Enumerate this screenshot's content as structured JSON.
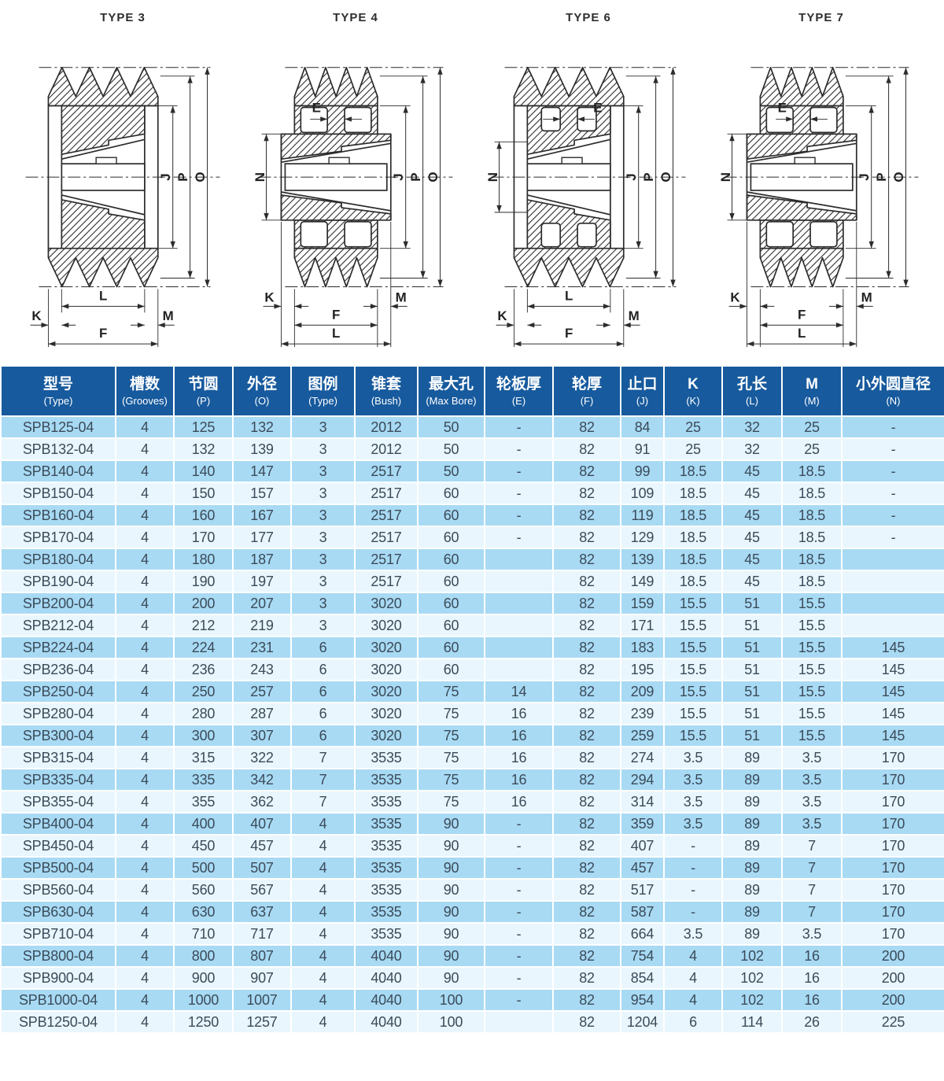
{
  "colors": {
    "header_bg": "#175a9d",
    "row_dark": "#a8daf4",
    "row_light": "#e9f6fd",
    "header_text": "#ffffff",
    "body_text": "#3b4b59",
    "line": "#2c2c2c"
  },
  "drawings": [
    {
      "title": "TYPE 3",
      "dim_labels": {
        "j": "J",
        "p": "P",
        "o": "O",
        "l": "L",
        "k": "K",
        "m": "M",
        "f": "F"
      }
    },
    {
      "title": "TYPE 4",
      "dim_labels": {
        "e": "E",
        "n": "N",
        "j": "J",
        "p": "P",
        "o": "O",
        "k": "K",
        "m": "M",
        "f": "F",
        "l": "L"
      }
    },
    {
      "title": "TYPE 6",
      "dim_labels": {
        "e": "E",
        "n": "N",
        "j": "J",
        "p": "P",
        "o": "O",
        "l": "L",
        "k": "K",
        "m": "M",
        "f": "F"
      }
    },
    {
      "title": "TYPE 7",
      "dim_labels": {
        "e": "E",
        "n": "N",
        "j": "J",
        "p": "P",
        "o": "O",
        "k": "K",
        "m": "M",
        "f": "F",
        "l": "L"
      }
    }
  ],
  "table": {
    "columns": [
      {
        "zh": "型号",
        "en": "(Type)"
      },
      {
        "zh": "槽数",
        "en": "(Grooves)"
      },
      {
        "zh": "节圆",
        "en": "(P)"
      },
      {
        "zh": "外径",
        "en": "(O)"
      },
      {
        "zh": "图例",
        "en": "(Type)"
      },
      {
        "zh": "锥套",
        "en": "(Bush)"
      },
      {
        "zh": "最大孔",
        "en": "(Max Bore)"
      },
      {
        "zh": "轮板厚",
        "en": "(E)"
      },
      {
        "zh": "轮厚",
        "en": "(F)"
      },
      {
        "zh": "止口",
        "en": "(J)"
      },
      {
        "zh": "K",
        "en": "(K)"
      },
      {
        "zh": "孔长",
        "en": "(L)"
      },
      {
        "zh": "M",
        "en": "(M)"
      },
      {
        "zh": "小外圆直径",
        "en": "(N)"
      }
    ],
    "rows": [
      [
        "SPB125-04",
        "4",
        "125",
        "132",
        "3",
        "2012",
        "50",
        "-",
        "82",
        "84",
        "25",
        "32",
        "25",
        "-"
      ],
      [
        "SPB132-04",
        "4",
        "132",
        "139",
        "3",
        "2012",
        "50",
        "-",
        "82",
        "91",
        "25",
        "32",
        "25",
        "-"
      ],
      [
        "SPB140-04",
        "4",
        "140",
        "147",
        "3",
        "2517",
        "50",
        "-",
        "82",
        "99",
        "18.5",
        "45",
        "18.5",
        "-"
      ],
      [
        "SPB150-04",
        "4",
        "150",
        "157",
        "3",
        "2517",
        "60",
        "-",
        "82",
        "109",
        "18.5",
        "45",
        "18.5",
        "-"
      ],
      [
        "SPB160-04",
        "4",
        "160",
        "167",
        "3",
        "2517",
        "60",
        "-",
        "82",
        "119",
        "18.5",
        "45",
        "18.5",
        "-"
      ],
      [
        "SPB170-04",
        "4",
        "170",
        "177",
        "3",
        "2517",
        "60",
        "-",
        "82",
        "129",
        "18.5",
        "45",
        "18.5",
        "-"
      ],
      [
        "SPB180-04",
        "4",
        "180",
        "187",
        "3",
        "2517",
        "60",
        "",
        "82",
        "139",
        "18.5",
        "45",
        "18.5",
        ""
      ],
      [
        "SPB190-04",
        "4",
        "190",
        "197",
        "3",
        "2517",
        "60",
        "",
        "82",
        "149",
        "18.5",
        "45",
        "18.5",
        ""
      ],
      [
        "SPB200-04",
        "4",
        "200",
        "207",
        "3",
        "3020",
        "60",
        "",
        "82",
        "159",
        "15.5",
        "51",
        "15.5",
        ""
      ],
      [
        "SPB212-04",
        "4",
        "212",
        "219",
        "3",
        "3020",
        "60",
        "",
        "82",
        "171",
        "15.5",
        "51",
        "15.5",
        ""
      ],
      [
        "SPB224-04",
        "4",
        "224",
        "231",
        "6",
        "3020",
        "60",
        "",
        "82",
        "183",
        "15.5",
        "51",
        "15.5",
        "145"
      ],
      [
        "SPB236-04",
        "4",
        "236",
        "243",
        "6",
        "3020",
        "60",
        "",
        "82",
        "195",
        "15.5",
        "51",
        "15.5",
        "145"
      ],
      [
        "SPB250-04",
        "4",
        "250",
        "257",
        "6",
        "3020",
        "75",
        "14",
        "82",
        "209",
        "15.5",
        "51",
        "15.5",
        "145"
      ],
      [
        "SPB280-04",
        "4",
        "280",
        "287",
        "6",
        "3020",
        "75",
        "16",
        "82",
        "239",
        "15.5",
        "51",
        "15.5",
        "145"
      ],
      [
        "SPB300-04",
        "4",
        "300",
        "307",
        "6",
        "3020",
        "75",
        "16",
        "82",
        "259",
        "15.5",
        "51",
        "15.5",
        "145"
      ],
      [
        "SPB315-04",
        "4",
        "315",
        "322",
        "7",
        "3535",
        "75",
        "16",
        "82",
        "274",
        "3.5",
        "89",
        "3.5",
        "170"
      ],
      [
        "SPB335-04",
        "4",
        "335",
        "342",
        "7",
        "3535",
        "75",
        "16",
        "82",
        "294",
        "3.5",
        "89",
        "3.5",
        "170"
      ],
      [
        "SPB355-04",
        "4",
        "355",
        "362",
        "7",
        "3535",
        "75",
        "16",
        "82",
        "314",
        "3.5",
        "89",
        "3.5",
        "170"
      ],
      [
        "SPB400-04",
        "4",
        "400",
        "407",
        "4",
        "3535",
        "90",
        "-",
        "82",
        "359",
        "3.5",
        "89",
        "3.5",
        "170"
      ],
      [
        "SPB450-04",
        "4",
        "450",
        "457",
        "4",
        "3535",
        "90",
        "-",
        "82",
        "407",
        "-",
        "89",
        "7",
        "170"
      ],
      [
        "SPB500-04",
        "4",
        "500",
        "507",
        "4",
        "3535",
        "90",
        "-",
        "82",
        "457",
        "-",
        "89",
        "7",
        "170"
      ],
      [
        "SPB560-04",
        "4",
        "560",
        "567",
        "4",
        "3535",
        "90",
        "-",
        "82",
        "517",
        "-",
        "89",
        "7",
        "170"
      ],
      [
        "SPB630-04",
        "4",
        "630",
        "637",
        "4",
        "3535",
        "90",
        "-",
        "82",
        "587",
        "-",
        "89",
        "7",
        "170"
      ],
      [
        "SPB710-04",
        "4",
        "710",
        "717",
        "4",
        "3535",
        "90",
        "-",
        "82",
        "664",
        "3.5",
        "89",
        "3.5",
        "170"
      ],
      [
        "SPB800-04",
        "4",
        "800",
        "807",
        "4",
        "4040",
        "90",
        "-",
        "82",
        "754",
        "4",
        "102",
        "16",
        "200"
      ],
      [
        "SPB900-04",
        "4",
        "900",
        "907",
        "4",
        "4040",
        "90",
        "-",
        "82",
        "854",
        "4",
        "102",
        "16",
        "200"
      ],
      [
        "SPB1000-04",
        "4",
        "1000",
        "1007",
        "4",
        "4040",
        "100",
        "-",
        "82",
        "954",
        "4",
        "102",
        "16",
        "200"
      ],
      [
        "SPB1250-04",
        "4",
        "1250",
        "1257",
        "4",
        "4040",
        "100",
        "",
        "82",
        "1204",
        "6",
        "114",
        "26",
        "225"
      ]
    ]
  }
}
